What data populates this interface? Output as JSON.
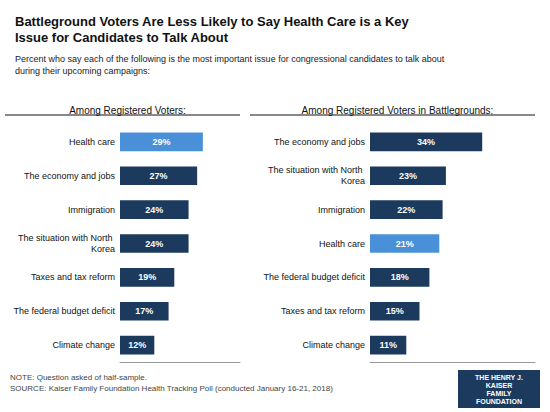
{
  "title": "Battleground Voters Are Less Likely to Say Health Care is a Key\nIssue for Candidates to Talk About",
  "subtitle": "Percent who say each of the following is the most important issue for congressional candidates to talk about\nduring their upcoming campaigns:",
  "annotations": [
    "NOTE: Question asked of half-sample.\nSOURCE: Kaiser Family Foundation Health Tracking Poll (conducted January 16-21, 2018)",
    "THE HENRY J.\nKAISER\nFAMILY\nFOUNDATION"
  ],
  "chart_data": [
    {
      "type": "bar",
      "orientation": "horizontal",
      "title": "Among Registered Voters:",
      "categories": [
        "Health care",
        "The economy and jobs",
        "Immigration",
        "The situation with North Korea",
        "Taxes and tax reform",
        "The federal budget deficit",
        "Climate change"
      ],
      "values": [
        29,
        27,
        24,
        24,
        19,
        17,
        12
      ],
      "value_labels": [
        "29%",
        "27%",
        "24%",
        "24%",
        "19%",
        "17%",
        "12%"
      ],
      "colors": [
        "#4a90d9",
        "#1b3a5e",
        "#1b3a5e",
        "#1b3a5e",
        "#1b3a5e",
        "#1b3a5e",
        "#1b3a5e"
      ],
      "xlim": [
        0,
        42
      ],
      "xticks": [],
      "data_labels": true,
      "tick_labels": "y",
      "grid": false
    },
    {
      "type": "bar",
      "orientation": "horizontal",
      "title": "Among Registered Voters in Battlegrounds:",
      "categories": [
        "The economy and jobs",
        "The situation with North Korea",
        "Immigration",
        "Health care",
        "The federal budget deficit",
        "Taxes and tax reform",
        "Climate change"
      ],
      "values": [
        34,
        23,
        22,
        21,
        18,
        15,
        11
      ],
      "value_labels": [
        "34%",
        "23%",
        "22%",
        "21%",
        "18%",
        "15%",
        "11%"
      ],
      "colors": [
        "#1b3a5e",
        "#1b3a5e",
        "#1b3a5e",
        "#4a90d9",
        "#1b3a5e",
        "#1b3a5e",
        "#1b3a5e"
      ],
      "xlim": [
        0,
        50
      ],
      "xticks": [],
      "data_labels": true,
      "tick_labels": "y",
      "grid": false
    }
  ]
}
